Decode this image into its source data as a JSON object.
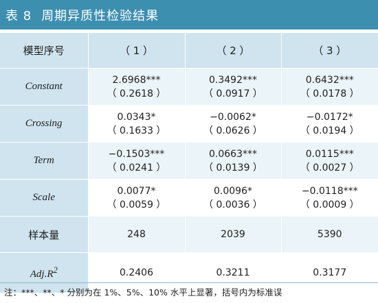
{
  "title": {
    "number": "表 8",
    "text": "周期异质性检验结果"
  },
  "table": {
    "columns": [
      "模型序号",
      "（ 1 ）",
      "（ 2 ）",
      "（ 3 ）"
    ],
    "rows": [
      {
        "label": "Constant",
        "cells": [
          {
            "coef": "2.6968***",
            "se": "（ 0.2618 ）"
          },
          {
            "coef": "0.3492***",
            "se": "（ 0.0917 ）"
          },
          {
            "coef": "0.6432***",
            "se": "（ 0.0178 ）"
          }
        ]
      },
      {
        "label": "Crossing",
        "cells": [
          {
            "coef": "0.0343*",
            "se": "（ 0.1633 ）"
          },
          {
            "coef": "−0.0062*",
            "se": "（ 0.0626 ）"
          },
          {
            "coef": "−0.0172*",
            "se": "（ 0.0194 ）"
          }
        ]
      },
      {
        "label": "Term",
        "cells": [
          {
            "coef": "−0.1503***",
            "se": "（ 0.0241 ）"
          },
          {
            "coef": "0.0663***",
            "se": "（ 0.0139 ）"
          },
          {
            "coef": "0.0115***",
            "se": "（ 0.0027 ）"
          }
        ]
      },
      {
        "label": "Scale",
        "cells": [
          {
            "coef": "0.0077*",
            "se": "（ 0.0059 ）"
          },
          {
            "coef": "0.0096*",
            "se": "（ 0.0036 ）"
          },
          {
            "coef": "−0.0118***",
            "se": "（ 0.0009 ）"
          }
        ]
      }
    ],
    "sample_size": {
      "label": "样本量",
      "values": [
        "248",
        "2039",
        "5390"
      ]
    },
    "adj_r2": {
      "label": "Adj.R",
      "label_sup": "2",
      "values": [
        "0.2406",
        "0.3211",
        "0.3177"
      ]
    }
  },
  "footnote": "注：***、**、* 分别为在 1%、5%、10% 水平上显著，括号内为标准误"
}
